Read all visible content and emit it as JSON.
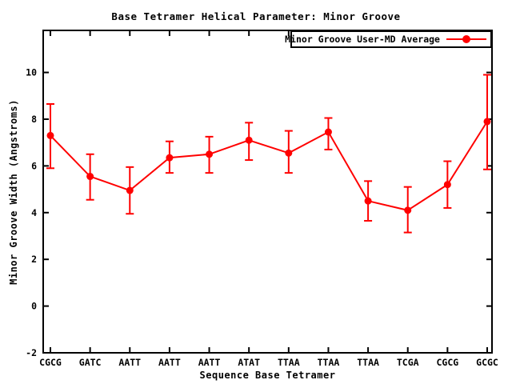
{
  "chart_data": {
    "type": "line",
    "title": "Base Tetramer Helical Parameter: Minor Groove",
    "xlabel": "Sequence Base Tetramer",
    "ylabel": "Minor Groove Width (Angstroms)",
    "legend": {
      "label": "Minor Groove User-MD Average",
      "position": "top-right",
      "boxed": true,
      "marker": "filled-circle"
    },
    "categories": [
      "CGCG",
      "GATC",
      "AATT",
      "AATT",
      "AATT",
      "ATAT",
      "TTAA",
      "TTAA",
      "TTAA",
      "TCGA",
      "CGCG",
      "GCGC"
    ],
    "series": [
      {
        "name": "Minor Groove User-MD Average",
        "values": [
          7.3,
          5.55,
          4.95,
          6.35,
          6.5,
          7.1,
          6.55,
          7.45,
          4.5,
          4.1,
          5.2,
          7.9
        ],
        "error_high": [
          8.65,
          6.5,
          5.95,
          7.05,
          7.25,
          7.85,
          7.5,
          8.05,
          5.35,
          5.1,
          6.2,
          9.9
        ],
        "error_low": [
          5.9,
          4.55,
          3.95,
          5.7,
          5.7,
          6.25,
          5.7,
          6.7,
          3.65,
          3.15,
          4.2,
          5.85
        ]
      }
    ],
    "yticks": [
      -2,
      0,
      2,
      4,
      6,
      8,
      10
    ],
    "ylim": [
      -2,
      11.8
    ],
    "grid": false,
    "line_color": "#ff0000",
    "text_color": "#000000",
    "background_color": "#ffffff",
    "border_color": "#000000"
  }
}
